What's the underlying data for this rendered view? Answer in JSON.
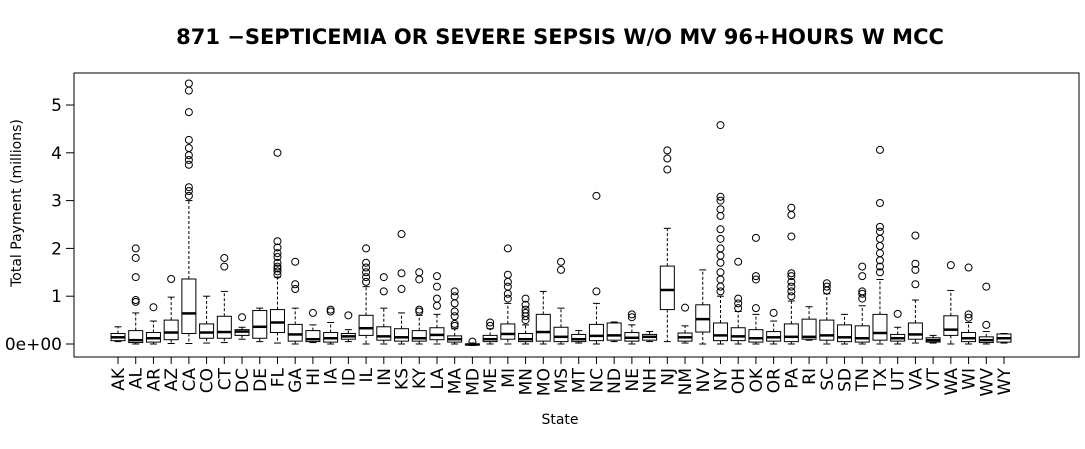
{
  "chart_data": {
    "type": "box",
    "title": "871 −SEPTICEMIA OR SEVERE SEPSIS W/O MV 96+HOURS W MCC",
    "xlabel": "State",
    "ylabel": "Total Payment (millions)",
    "ylim": [
      -0.35,
      5.65
    ],
    "yticks": [
      0,
      1,
      2,
      3,
      4,
      5
    ],
    "ytick_labels": [
      "0e+00",
      "1",
      "2",
      "3",
      "4",
      "5"
    ],
    "grid": false,
    "categories": [
      "AK",
      "AL",
      "AR",
      "AZ",
      "CA",
      "CO",
      "CT",
      "DC",
      "DE",
      "FL",
      "GA",
      "HI",
      "IA",
      "ID",
      "IL",
      "IN",
      "KS",
      "KY",
      "LA",
      "MA",
      "MD",
      "ME",
      "MI",
      "MN",
      "MO",
      "MS",
      "MT",
      "NC",
      "ND",
      "NE",
      "NH",
      "NJ",
      "NM",
      "NV",
      "NY",
      "OH",
      "OK",
      "OR",
      "PA",
      "RI",
      "SC",
      "SD",
      "TN",
      "TX",
      "UT",
      "VA",
      "VT",
      "WA",
      "WI",
      "WV",
      "WY"
    ],
    "boxes": [
      {
        "state": "AK",
        "min": 0.05,
        "q1": 0.07,
        "median": 0.14,
        "q3": 0.22,
        "max": 0.36,
        "outliers": []
      },
      {
        "state": "AL",
        "min": 0.0,
        "q1": 0.03,
        "median": 0.08,
        "q3": 0.28,
        "max": 0.65,
        "outliers": [
          0.88,
          0.92,
          1.4,
          1.8,
          2.0
        ]
      },
      {
        "state": "AR",
        "min": 0.0,
        "q1": 0.04,
        "median": 0.12,
        "q3": 0.24,
        "max": 0.48,
        "outliers": [
          0.77
        ]
      },
      {
        "state": "AZ",
        "min": 0.01,
        "q1": 0.09,
        "median": 0.24,
        "q3": 0.5,
        "max": 0.98,
        "outliers": [
          1.36
        ]
      },
      {
        "state": "CA",
        "min": 0.01,
        "q1": 0.22,
        "median": 0.64,
        "q3": 1.36,
        "max": 3.0,
        "outliers": [
          3.1,
          3.2,
          3.28,
          3.75,
          3.85,
          3.95,
          4.1,
          4.27,
          4.85,
          5.3,
          5.45
        ]
      },
      {
        "state": "CO",
        "min": 0.02,
        "q1": 0.12,
        "median": 0.24,
        "q3": 0.42,
        "max": 1.0,
        "outliers": []
      },
      {
        "state": "CT",
        "min": 0.03,
        "q1": 0.12,
        "median": 0.25,
        "q3": 0.58,
        "max": 1.1,
        "outliers": [
          1.62,
          1.8
        ]
      },
      {
        "state": "DC",
        "min": 0.1,
        "q1": 0.18,
        "median": 0.26,
        "q3": 0.3,
        "max": 0.35,
        "outliers": [
          0.56
        ]
      },
      {
        "state": "DE",
        "min": 0.05,
        "q1": 0.12,
        "median": 0.36,
        "q3": 0.7,
        "max": 0.75,
        "outliers": []
      },
      {
        "state": "FL",
        "min": 0.02,
        "q1": 0.24,
        "median": 0.45,
        "q3": 0.72,
        "max": 1.4,
        "outliers": [
          1.45,
          1.52,
          1.58,
          1.62,
          1.7,
          1.82,
          1.9,
          2.02,
          2.15,
          4.0
        ]
      },
      {
        "state": "GA",
        "min": 0.0,
        "q1": 0.06,
        "median": 0.2,
        "q3": 0.41,
        "max": 0.75,
        "outliers": [
          1.15,
          1.25,
          1.72
        ]
      },
      {
        "state": "HI",
        "min": 0.03,
        "q1": 0.05,
        "median": 0.1,
        "q3": 0.28,
        "max": 0.4,
        "outliers": [
          0.65
        ]
      },
      {
        "state": "IA",
        "min": 0.0,
        "q1": 0.04,
        "median": 0.12,
        "q3": 0.24,
        "max": 0.45,
        "outliers": [
          0.68,
          0.72
        ]
      },
      {
        "state": "ID",
        "min": 0.05,
        "q1": 0.1,
        "median": 0.16,
        "q3": 0.22,
        "max": 0.3,
        "outliers": [
          0.6
        ]
      },
      {
        "state": "IL",
        "min": 0.0,
        "q1": 0.18,
        "median": 0.33,
        "q3": 0.6,
        "max": 1.2,
        "outliers": [
          1.3,
          1.4,
          1.5,
          1.6,
          1.7,
          2.0
        ]
      },
      {
        "state": "IN",
        "min": 0.0,
        "q1": 0.08,
        "median": 0.16,
        "q3": 0.36,
        "max": 0.75,
        "outliers": [
          1.1,
          1.4
        ]
      },
      {
        "state": "KS",
        "min": 0.0,
        "q1": 0.06,
        "median": 0.14,
        "q3": 0.32,
        "max": 0.65,
        "outliers": [
          1.15,
          1.48,
          2.3
        ]
      },
      {
        "state": "KY",
        "min": 0.0,
        "q1": 0.06,
        "median": 0.12,
        "q3": 0.28,
        "max": 0.6,
        "outliers": [
          0.68,
          0.72,
          1.35,
          1.5
        ]
      },
      {
        "state": "LA",
        "min": 0.0,
        "q1": 0.09,
        "median": 0.19,
        "q3": 0.34,
        "max": 0.62,
        "outliers": [
          0.8,
          0.95,
          1.2,
          1.42
        ]
      },
      {
        "state": "MA",
        "min": 0.0,
        "q1": 0.04,
        "median": 0.1,
        "q3": 0.17,
        "max": 0.32,
        "outliers": [
          0.38,
          0.42,
          0.58,
          0.68,
          0.85,
          1.0,
          1.1
        ]
      },
      {
        "state": "MD",
        "min": -0.03,
        "q1": -0.02,
        "median": -0.01,
        "q3": 0.0,
        "max": 0.02,
        "outliers": [
          0.05
        ]
      },
      {
        "state": "ME",
        "min": 0.0,
        "q1": 0.05,
        "median": 0.1,
        "q3": 0.18,
        "max": 0.32,
        "outliers": [
          0.38,
          0.45
        ]
      },
      {
        "state": "MI",
        "min": 0.0,
        "q1": 0.1,
        "median": 0.21,
        "q3": 0.42,
        "max": 0.85,
        "outliers": [
          0.95,
          1.05,
          1.2,
          1.3,
          1.45,
          2.0
        ]
      },
      {
        "state": "MN",
        "min": 0.0,
        "q1": 0.05,
        "median": 0.1,
        "q3": 0.22,
        "max": 0.4,
        "outliers": [
          0.5,
          0.58,
          0.65,
          0.72,
          0.82,
          0.95
        ]
      },
      {
        "state": "MO",
        "min": 0.0,
        "q1": 0.06,
        "median": 0.25,
        "q3": 0.62,
        "max": 1.1,
        "outliers": []
      },
      {
        "state": "MS",
        "min": 0.0,
        "q1": 0.05,
        "median": 0.15,
        "q3": 0.35,
        "max": 0.75,
        "outliers": [
          1.55,
          1.72
        ]
      },
      {
        "state": "MT",
        "min": 0.02,
        "q1": 0.05,
        "median": 0.1,
        "q3": 0.2,
        "max": 0.28,
        "outliers": []
      },
      {
        "state": "NC",
        "min": 0.0,
        "q1": 0.07,
        "median": 0.17,
        "q3": 0.41,
        "max": 0.85,
        "outliers": [
          1.1,
          3.1
        ]
      },
      {
        "state": "ND",
        "min": 0.05,
        "q1": 0.08,
        "median": 0.18,
        "q3": 0.44,
        "max": 0.46,
        "outliers": []
      },
      {
        "state": "NE",
        "min": 0.0,
        "q1": 0.06,
        "median": 0.13,
        "q3": 0.24,
        "max": 0.4,
        "outliers": [
          0.56,
          0.62
        ]
      },
      {
        "state": "NH",
        "min": 0.05,
        "q1": 0.08,
        "median": 0.15,
        "q3": 0.2,
        "max": 0.26,
        "outliers": []
      },
      {
        "state": "NJ",
        "min": 0.05,
        "q1": 0.72,
        "median": 1.13,
        "q3": 1.63,
        "max": 2.42,
        "outliers": [
          3.65,
          3.88,
          4.05
        ]
      },
      {
        "state": "NM",
        "min": 0.02,
        "q1": 0.06,
        "median": 0.14,
        "q3": 0.23,
        "max": 0.38,
        "outliers": [
          0.76
        ]
      },
      {
        "state": "NV",
        "min": 0.0,
        "q1": 0.25,
        "median": 0.52,
        "q3": 0.82,
        "max": 1.55,
        "outliers": []
      },
      {
        "state": "NY",
        "min": 0.0,
        "q1": 0.07,
        "median": 0.18,
        "q3": 0.44,
        "max": 1.0,
        "outliers": [
          1.1,
          1.2,
          1.35,
          1.5,
          1.7,
          1.85,
          2.0,
          2.2,
          2.4,
          2.68,
          2.82,
          3.0,
          3.08,
          4.58
        ]
      },
      {
        "state": "OH",
        "min": 0.0,
        "q1": 0.07,
        "median": 0.16,
        "q3": 0.34,
        "max": 0.68,
        "outliers": [
          0.75,
          0.85,
          0.95,
          1.72
        ]
      },
      {
        "state": "OK",
        "min": 0.0,
        "q1": 0.04,
        "median": 0.12,
        "q3": 0.3,
        "max": 0.62,
        "outliers": [
          0.75,
          1.35,
          1.42,
          2.22
        ]
      },
      {
        "state": "OR",
        "min": 0.0,
        "q1": 0.06,
        "median": 0.14,
        "q3": 0.26,
        "max": 0.48,
        "outliers": [
          0.65
        ]
      },
      {
        "state": "PA",
        "min": 0.0,
        "q1": 0.05,
        "median": 0.15,
        "q3": 0.42,
        "max": 0.9,
        "outliers": [
          1.0,
          1.1,
          1.2,
          1.3,
          1.42,
          1.48,
          2.25,
          2.7,
          2.85
        ]
      },
      {
        "state": "RI",
        "min": 0.08,
        "q1": 0.1,
        "median": 0.15,
        "q3": 0.52,
        "max": 0.78,
        "outliers": []
      },
      {
        "state": "SC",
        "min": 0.0,
        "q1": 0.08,
        "median": 0.18,
        "q3": 0.5,
        "max": 1.05,
        "outliers": [
          1.12,
          1.2,
          1.27
        ]
      },
      {
        "state": "SD",
        "min": 0.0,
        "q1": 0.05,
        "median": 0.14,
        "q3": 0.4,
        "max": 0.62,
        "outliers": []
      },
      {
        "state": "TN",
        "min": 0.0,
        "q1": 0.04,
        "median": 0.12,
        "q3": 0.38,
        "max": 0.8,
        "outliers": [
          0.95,
          1.05,
          1.1,
          1.42,
          1.62
        ]
      },
      {
        "state": "TX",
        "min": 0.0,
        "q1": 0.08,
        "median": 0.23,
        "q3": 0.62,
        "max": 1.35,
        "outliers": [
          1.5,
          1.62,
          1.75,
          1.9,
          2.05,
          2.2,
          2.35,
          2.45,
          2.95,
          4.06
        ]
      },
      {
        "state": "UT",
        "min": 0.0,
        "q1": 0.06,
        "median": 0.12,
        "q3": 0.2,
        "max": 0.35,
        "outliers": [
          0.63
        ]
      },
      {
        "state": "VA",
        "min": 0.02,
        "q1": 0.1,
        "median": 0.2,
        "q3": 0.44,
        "max": 0.92,
        "outliers": [
          1.25,
          1.55,
          1.68,
          2.27
        ]
      },
      {
        "state": "VT",
        "min": 0.02,
        "q1": 0.04,
        "median": 0.08,
        "q3": 0.13,
        "max": 0.18,
        "outliers": []
      },
      {
        "state": "WA",
        "min": 0.0,
        "q1": 0.18,
        "median": 0.3,
        "q3": 0.59,
        "max": 1.12,
        "outliers": [
          1.65
        ]
      },
      {
        "state": "WI",
        "min": 0.0,
        "q1": 0.05,
        "median": 0.12,
        "q3": 0.24,
        "max": 0.45,
        "outliers": [
          0.55,
          0.62,
          1.6
        ]
      },
      {
        "state": "WV",
        "min": 0.0,
        "q1": 0.03,
        "median": 0.08,
        "q3": 0.15,
        "max": 0.26,
        "outliers": [
          0.4,
          1.2
        ]
      },
      {
        "state": "WY",
        "min": 0.02,
        "q1": 0.04,
        "median": 0.12,
        "q3": 0.21,
        "max": 0.22,
        "outliers": []
      }
    ]
  }
}
